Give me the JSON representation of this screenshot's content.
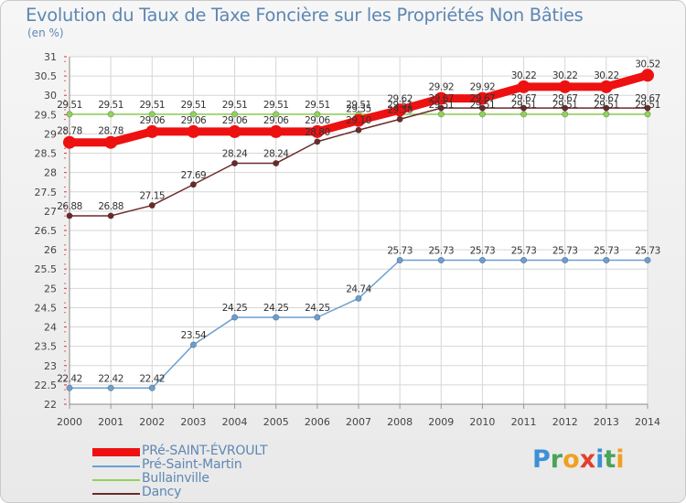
{
  "header": {
    "title": "Evolution du Taux de Taxe Foncière sur les Propriétés Non Bâties",
    "unit": "(en %)"
  },
  "brand": {
    "text": "Proxiti",
    "letters": [
      {
        "ch": "P",
        "color": "#3d8fd6"
      },
      {
        "ch": "r",
        "color": "#4aa35a"
      },
      {
        "ch": "o",
        "color": "#f0a020"
      },
      {
        "ch": "x",
        "color": "#e0402a"
      },
      {
        "ch": "i",
        "color": "#3d8fd6"
      },
      {
        "ch": "t",
        "color": "#4aa35a"
      },
      {
        "ch": "i",
        "color": "#f0a020"
      }
    ]
  },
  "chart_data": {
    "type": "line",
    "title": "Evolution du Taux de Taxe Foncière sur les Propriétés Non Bâties",
    "ylabel": "(en %)",
    "xlabel": "",
    "x": [
      "2000",
      "2001",
      "2002",
      "2003",
      "2004",
      "2005",
      "2006",
      "2007",
      "2008",
      "2009",
      "2010",
      "2011",
      "2012",
      "2013",
      "2014"
    ],
    "ylim": [
      22,
      31
    ],
    "yticks": [
      "22",
      "22.5",
      "23",
      "23.5",
      "24",
      "24.5",
      "25",
      "25.5",
      "26",
      "26.5",
      "27",
      "27.5",
      "28",
      "28.5",
      "29",
      "29.5",
      "30",
      "30.5",
      "31"
    ],
    "grid": true,
    "legend_position": "bottom-left",
    "series": [
      {
        "name": "PRé-SAINT-ÉVROULT",
        "color": "#ee1111",
        "values": [
          28.78,
          28.78,
          29.06,
          29.06,
          29.06,
          29.06,
          29.06,
          29.35,
          29.62,
          29.92,
          29.92,
          30.22,
          30.22,
          30.22,
          30.52
        ],
        "labels": [
          "28.78",
          "28.78",
          "29.06",
          "29.06",
          "29.06",
          "29.06",
          "29.06",
          "29.35",
          "29.62",
          "29.92",
          "29.92",
          "30.22",
          "30.22",
          "30.22",
          "30.52"
        ]
      },
      {
        "name": "Pré-Saint-Martin",
        "color": "#6a9fd0",
        "values": [
          22.42,
          22.42,
          22.42,
          23.54,
          24.25,
          24.25,
          24.25,
          24.74,
          25.73,
          25.73,
          25.73,
          25.73,
          25.73,
          25.73,
          25.73
        ],
        "labels": [
          "22.42",
          "22.42",
          "22.42",
          "23.54",
          "24.25",
          "24.25",
          "24.25",
          "24.74",
          "25.73",
          "25.73",
          "25.73",
          "25.73",
          "25.73",
          "25.73",
          "25.73"
        ]
      },
      {
        "name": "Bullainville",
        "color": "#8fd35a",
        "values": [
          29.51,
          29.51,
          29.51,
          29.51,
          29.51,
          29.51,
          29.51,
          29.51,
          29.51,
          29.51,
          29.51,
          29.51,
          29.51,
          29.51,
          29.51
        ],
        "labels": [
          "29.51",
          "29.51",
          "29.51",
          "29.51",
          "29.51",
          "29.51",
          "29.51",
          "29.51",
          "29.51",
          "29.51",
          "29.51",
          "29.51",
          "29.51",
          "29.51",
          "29.51"
        ]
      },
      {
        "name": "Dancy",
        "color": "#6b2a2a",
        "values": [
          26.88,
          26.88,
          27.15,
          27.69,
          28.24,
          28.24,
          28.8,
          29.1,
          29.38,
          29.67,
          29.67,
          29.67,
          29.67,
          29.67,
          29.67
        ],
        "labels": [
          "26.88",
          "26.88",
          "27.15",
          "27.69",
          "28.24",
          "28.24",
          "28.80",
          "29.10",
          "29.38",
          "29.67",
          "29.67",
          "29.67",
          "29.67",
          "29.67",
          "29.67"
        ]
      }
    ]
  }
}
